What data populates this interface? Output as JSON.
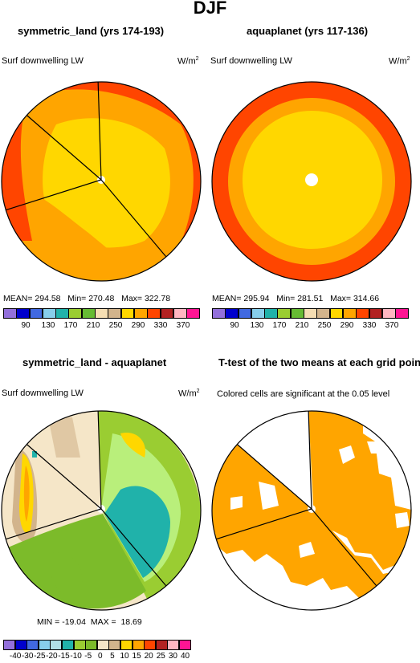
{
  "figure_title": "DJF",
  "panels": [
    {
      "title": "symmetric_land (yrs 174-193)",
      "variable": "Surf downwelling LW",
      "units": "W/m",
      "units_sup": "2",
      "stats": "MEAN= 294.58   Min= 270.48   Max= 322.78",
      "colorbar_labels": [
        "90",
        "130",
        "170",
        "210",
        "250",
        "290",
        "330",
        "370"
      ]
    },
    {
      "title": "aquaplanet (yrs 117-136)",
      "variable": "Surf downwelling LW",
      "units": "W/m",
      "units_sup": "2",
      "stats": "MEAN= 295.94   Min= 281.51   Max= 314.66",
      "colorbar_labels": [
        "90",
        "130",
        "170",
        "210",
        "250",
        "290",
        "330",
        "370"
      ]
    },
    {
      "title": "symmetric_land - aquaplanet",
      "variable": "Surf downwelling LW",
      "units": "W/m",
      "units_sup": "2",
      "stats": "MIN = -19.04  MAX =  18.69",
      "colorbar_labels": [
        "-40",
        "-30",
        "-25",
        "-20",
        "-15",
        "-10",
        "-5",
        "0",
        "5",
        "10",
        "15",
        "20",
        "25",
        "30",
        "40"
      ]
    },
    {
      "title": "T-test of the two means at each grid point",
      "note": "Colored cells are significant at the 0.05 level"
    }
  ],
  "colors": {
    "abs_scale": [
      "#9370db",
      "#0000cd",
      "#4169e1",
      "#87ceeb",
      "#20b2aa",
      "#9acd32",
      "#66bb33",
      "#f5deb3",
      "#d2b48c",
      "#ffd700",
      "#ffa500",
      "#ff4500",
      "#b22222",
      "#ffb6c1",
      "#ff1493"
    ],
    "diff_scale": [
      "#9370db",
      "#0000cd",
      "#4169e1",
      "#87ceeb",
      "#b0e0e6",
      "#20b2aa",
      "#9acd32",
      "#7cbb2a",
      "#f5e6c8",
      "#d2b48c",
      "#ffd700",
      "#ffa500",
      "#ff4500",
      "#b22222",
      "#ffb6c1",
      "#ff1493"
    ],
    "significant": "#ffa500"
  }
}
